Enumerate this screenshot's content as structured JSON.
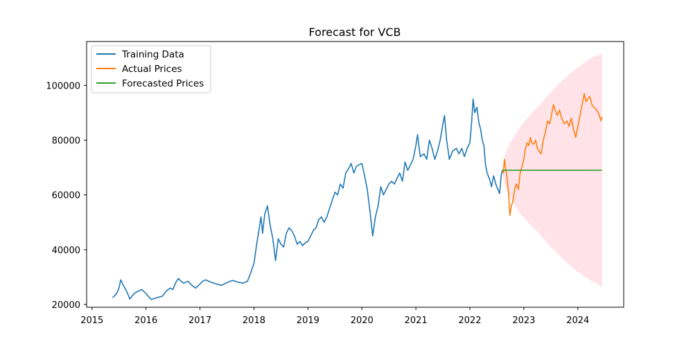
{
  "chart_data": {
    "type": "line",
    "title": "Forecast for VCB",
    "xlabel": "",
    "ylabel": "",
    "xlim": [
      2014.9,
      2024.85
    ],
    "ylim": [
      19000,
      116000
    ],
    "x_ticks": [
      "2015",
      "2016",
      "2017",
      "2018",
      "2019",
      "2020",
      "2021",
      "2022",
      "2023",
      "2024"
    ],
    "y_ticks": [
      "20000",
      "40000",
      "60000",
      "80000",
      "100000"
    ],
    "grid": false,
    "legend_position": "top-left",
    "series": [
      {
        "name": "Training Data",
        "color": "#1f77b4",
        "points": [
          [
            2015.38,
            22500
          ],
          [
            2015.45,
            23800
          ],
          [
            2015.5,
            26000
          ],
          [
            2015.53,
            29000
          ],
          [
            2015.58,
            27000
          ],
          [
            2015.65,
            24500
          ],
          [
            2015.7,
            22000
          ],
          [
            2015.78,
            24000
          ],
          [
            2015.85,
            24800
          ],
          [
            2015.92,
            25500
          ],
          [
            2016.0,
            24000
          ],
          [
            2016.05,
            22800
          ],
          [
            2016.1,
            21800
          ],
          [
            2016.2,
            22500
          ],
          [
            2016.3,
            23000
          ],
          [
            2016.38,
            25000
          ],
          [
            2016.45,
            26000
          ],
          [
            2016.5,
            25500
          ],
          [
            2016.55,
            28000
          ],
          [
            2016.6,
            29500
          ],
          [
            2016.65,
            28500
          ],
          [
            2016.7,
            27800
          ],
          [
            2016.78,
            28500
          ],
          [
            2016.85,
            27000
          ],
          [
            2016.92,
            26000
          ],
          [
            2017.0,
            27500
          ],
          [
            2017.05,
            28500
          ],
          [
            2017.1,
            29000
          ],
          [
            2017.2,
            28200
          ],
          [
            2017.3,
            27500
          ],
          [
            2017.4,
            27000
          ],
          [
            2017.5,
            28000
          ],
          [
            2017.6,
            28800
          ],
          [
            2017.7,
            28200
          ],
          [
            2017.8,
            27800
          ],
          [
            2017.88,
            28500
          ],
          [
            2017.93,
            31000
          ],
          [
            2018.0,
            35000
          ],
          [
            2018.05,
            42000
          ],
          [
            2018.1,
            48000
          ],
          [
            2018.13,
            52000
          ],
          [
            2018.16,
            46000
          ],
          [
            2018.2,
            53000
          ],
          [
            2018.25,
            56000
          ],
          [
            2018.3,
            49000
          ],
          [
            2018.35,
            44000
          ],
          [
            2018.4,
            36000
          ],
          [
            2018.45,
            44000
          ],
          [
            2018.5,
            42000
          ],
          [
            2018.55,
            41000
          ],
          [
            2018.6,
            46000
          ],
          [
            2018.65,
            48000
          ],
          [
            2018.7,
            47000
          ],
          [
            2018.75,
            45000
          ],
          [
            2018.8,
            42000
          ],
          [
            2018.85,
            43000
          ],
          [
            2018.9,
            41500
          ],
          [
            2018.95,
            42500
          ],
          [
            2019.0,
            43000
          ],
          [
            2019.05,
            45000
          ],
          [
            2019.1,
            47000
          ],
          [
            2019.15,
            48000
          ],
          [
            2019.2,
            51000
          ],
          [
            2019.25,
            52000
          ],
          [
            2019.3,
            50000
          ],
          [
            2019.35,
            52000
          ],
          [
            2019.4,
            55000
          ],
          [
            2019.45,
            58000
          ],
          [
            2019.5,
            61000
          ],
          [
            2019.55,
            60000
          ],
          [
            2019.6,
            64000
          ],
          [
            2019.65,
            62500
          ],
          [
            2019.7,
            68000
          ],
          [
            2019.75,
            69500
          ],
          [
            2019.8,
            71500
          ],
          [
            2019.85,
            68000
          ],
          [
            2019.9,
            70500
          ],
          [
            2019.95,
            71000
          ],
          [
            2020.0,
            71500
          ],
          [
            2020.05,
            67000
          ],
          [
            2020.1,
            62000
          ],
          [
            2020.15,
            54000
          ],
          [
            2020.2,
            45000
          ],
          [
            2020.25,
            52000
          ],
          [
            2020.3,
            56000
          ],
          [
            2020.35,
            63000
          ],
          [
            2020.4,
            60000
          ],
          [
            2020.45,
            62000
          ],
          [
            2020.5,
            64000
          ],
          [
            2020.55,
            65000
          ],
          [
            2020.6,
            64000
          ],
          [
            2020.65,
            66000
          ],
          [
            2020.7,
            68000
          ],
          [
            2020.75,
            65000
          ],
          [
            2020.8,
            72000
          ],
          [
            2020.85,
            69000
          ],
          [
            2020.9,
            71000
          ],
          [
            2020.95,
            73000
          ],
          [
            2021.0,
            78000
          ],
          [
            2021.03,
            82000
          ],
          [
            2021.08,
            74000
          ],
          [
            2021.15,
            75000
          ],
          [
            2021.2,
            73000
          ],
          [
            2021.25,
            80000
          ],
          [
            2021.3,
            77000
          ],
          [
            2021.35,
            73000
          ],
          [
            2021.4,
            76000
          ],
          [
            2021.45,
            80000
          ],
          [
            2021.5,
            86000
          ],
          [
            2021.53,
            89000
          ],
          [
            2021.57,
            80000
          ],
          [
            2021.62,
            73000
          ],
          [
            2021.68,
            76000
          ],
          [
            2021.75,
            77000
          ],
          [
            2021.8,
            75000
          ],
          [
            2021.85,
            77000
          ],
          [
            2021.9,
            74000
          ],
          [
            2021.95,
            77000
          ],
          [
            2022.0,
            79000
          ],
          [
            2022.03,
            86000
          ],
          [
            2022.06,
            95000
          ],
          [
            2022.09,
            90000
          ],
          [
            2022.13,
            92000
          ],
          [
            2022.17,
            86000
          ],
          [
            2022.2,
            84000
          ],
          [
            2022.23,
            80000
          ],
          [
            2022.26,
            78000
          ],
          [
            2022.29,
            71000
          ],
          [
            2022.32,
            68000
          ],
          [
            2022.36,
            66000
          ],
          [
            2022.4,
            63000
          ],
          [
            2022.44,
            67000
          ],
          [
            2022.48,
            64000
          ],
          [
            2022.52,
            62000
          ],
          [
            2022.55,
            60500
          ],
          [
            2022.58,
            67000
          ],
          [
            2022.6,
            69000
          ]
        ]
      },
      {
        "name": "Actual Prices",
        "color": "#ff7f0e",
        "points": [
          [
            2022.6,
            69000
          ],
          [
            2022.62,
            68000
          ],
          [
            2022.64,
            73000
          ],
          [
            2022.66,
            70000
          ],
          [
            2022.69,
            66000
          ],
          [
            2022.72,
            60000
          ],
          [
            2022.74,
            52500
          ],
          [
            2022.77,
            56000
          ],
          [
            2022.8,
            58000
          ],
          [
            2022.83,
            62000
          ],
          [
            2022.86,
            64000
          ],
          [
            2022.9,
            62000
          ],
          [
            2022.93,
            68000
          ],
          [
            2022.96,
            70000
          ],
          [
            2023.0,
            73000
          ],
          [
            2023.03,
            77000
          ],
          [
            2023.06,
            79000
          ],
          [
            2023.09,
            78000
          ],
          [
            2023.12,
            81000
          ],
          [
            2023.15,
            79000
          ],
          [
            2023.18,
            78500
          ],
          [
            2023.22,
            80000
          ],
          [
            2023.25,
            77000
          ],
          [
            2023.28,
            76000
          ],
          [
            2023.32,
            75000
          ],
          [
            2023.36,
            80000
          ],
          [
            2023.4,
            83000
          ],
          [
            2023.44,
            87000
          ],
          [
            2023.48,
            86000
          ],
          [
            2023.52,
            90000
          ],
          [
            2023.55,
            93000
          ],
          [
            2023.58,
            91000
          ],
          [
            2023.62,
            89000
          ],
          [
            2023.66,
            91000
          ],
          [
            2023.7,
            88000
          ],
          [
            2023.75,
            86000
          ],
          [
            2023.8,
            87000
          ],
          [
            2023.84,
            85000
          ],
          [
            2023.88,
            88000
          ],
          [
            2023.92,
            84000
          ],
          [
            2023.96,
            81000
          ],
          [
            2024.0,
            85000
          ],
          [
            2024.03,
            88000
          ],
          [
            2024.06,
            91000
          ],
          [
            2024.09,
            94000
          ],
          [
            2024.12,
            97000
          ],
          [
            2024.15,
            94000
          ],
          [
            2024.18,
            95000
          ],
          [
            2024.22,
            96000
          ],
          [
            2024.26,
            93000
          ],
          [
            2024.3,
            92000
          ],
          [
            2024.35,
            91000
          ],
          [
            2024.4,
            89000
          ],
          [
            2024.43,
            87000
          ],
          [
            2024.45,
            88500
          ]
        ]
      },
      {
        "name": "Forecasted Prices",
        "color": "#2ca02c",
        "points": [
          [
            2022.6,
            69000
          ],
          [
            2024.45,
            69000
          ]
        ]
      }
    ],
    "confidence_band": {
      "color": "#ffc0cb",
      "points": [
        [
          2022.6,
          69000,
          69000
        ],
        [
          2022.65,
          75000,
          63000
        ],
        [
          2022.75,
          79000,
          59000
        ],
        [
          2022.9,
          84000,
          54000
        ],
        [
          2023.1,
          89000,
          49500
        ],
        [
          2023.3,
          93000,
          45500
        ],
        [
          2023.5,
          97500,
          41000
        ],
        [
          2023.7,
          101500,
          37000
        ],
        [
          2023.9,
          105000,
          33500
        ],
        [
          2024.1,
          108000,
          30500
        ],
        [
          2024.3,
          110500,
          28000
        ],
        [
          2024.45,
          111500,
          26500
        ]
      ]
    }
  }
}
